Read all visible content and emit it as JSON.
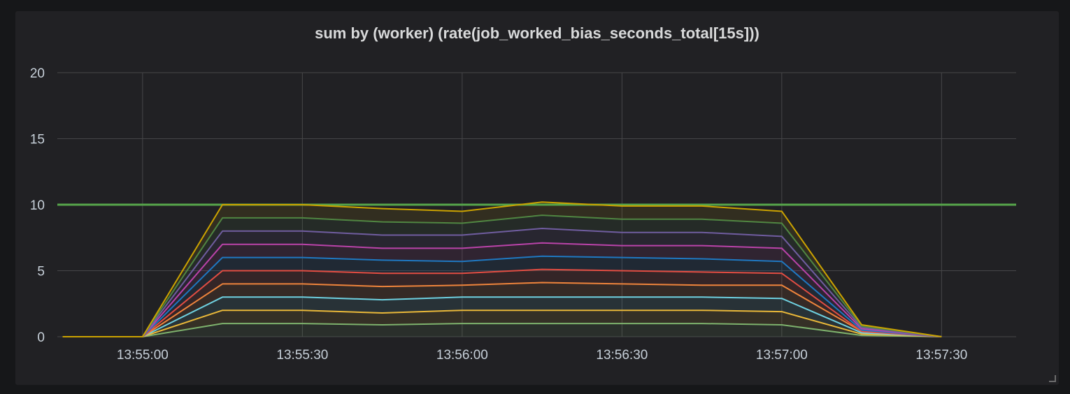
{
  "panel": {
    "title": "sum by (worker) (rate(job_worked_bias_seconds_total[15s]))"
  },
  "chart_data": {
    "type": "area",
    "title": "sum by (worker) (rate(job_worked_bias_seconds_total[15s]))",
    "xlabel": "",
    "ylabel": "",
    "stacked": true,
    "grid": true,
    "legend": "none",
    "ylim": [
      0,
      20
    ],
    "xlim": [
      "13:54:44",
      "13:57:44"
    ],
    "y_ticks": [
      "0",
      "5",
      "10",
      "15",
      "20"
    ],
    "x_ticks": [
      {
        "label": "13:55:00",
        "t": "13:55:00"
      },
      {
        "label": "13:55:30",
        "t": "13:55:30"
      },
      {
        "label": "13:56:00",
        "t": "13:56:00"
      },
      {
        "label": "13:56:30",
        "t": "13:56:30"
      },
      {
        "label": "13:57:00",
        "t": "13:57:00"
      },
      {
        "label": "13:57:30",
        "t": "13:57:30"
      }
    ],
    "x": [
      "13:54:45",
      "13:55:00",
      "13:55:15",
      "13:55:30",
      "13:55:45",
      "13:56:00",
      "13:56:15",
      "13:56:30",
      "13:56:45",
      "13:57:00",
      "13:57:15",
      "13:57:30"
    ],
    "threshold": {
      "value": 10,
      "color": "#56a64b"
    },
    "series": [
      {
        "color": "#7eb26d",
        "values": [
          0,
          0,
          1.0,
          1.0,
          0.9,
          1.0,
          1.0,
          1.0,
          1.0,
          0.9,
          0.1,
          0
        ]
      },
      {
        "color": "#eab839",
        "values": [
          0,
          0,
          2.0,
          2.0,
          1.8,
          2.0,
          2.0,
          2.0,
          2.0,
          1.9,
          0.2,
          0
        ]
      },
      {
        "color": "#6ed0e0",
        "values": [
          0,
          0,
          3.0,
          3.0,
          2.8,
          3.0,
          3.0,
          3.0,
          3.0,
          2.9,
          0.3,
          0
        ]
      },
      {
        "color": "#ef843c",
        "values": [
          0,
          0,
          4.0,
          4.0,
          3.8,
          3.9,
          4.1,
          4.0,
          3.9,
          3.9,
          0.4,
          0
        ]
      },
      {
        "color": "#e24d42",
        "values": [
          0,
          0,
          5.0,
          5.0,
          4.8,
          4.8,
          5.1,
          5.0,
          4.9,
          4.8,
          0.4,
          0
        ]
      },
      {
        "color": "#1f78c1",
        "values": [
          0,
          0,
          6.0,
          6.0,
          5.8,
          5.7,
          6.1,
          6.0,
          5.9,
          5.7,
          0.5,
          0
        ]
      },
      {
        "color": "#ba43a9",
        "values": [
          0,
          0,
          7.0,
          7.0,
          6.7,
          6.7,
          7.1,
          6.9,
          6.9,
          6.7,
          0.6,
          0
        ]
      },
      {
        "color": "#705da0",
        "values": [
          0,
          0,
          8.0,
          8.0,
          7.7,
          7.7,
          8.2,
          7.9,
          7.9,
          7.6,
          0.7,
          0
        ]
      },
      {
        "color": "#508642",
        "values": [
          0,
          0,
          9.0,
          9.0,
          8.7,
          8.6,
          9.2,
          8.9,
          8.9,
          8.6,
          0.8,
          0
        ]
      },
      {
        "color": "#cca300",
        "values": [
          0,
          0,
          10.0,
          10.0,
          9.7,
          9.5,
          10.2,
          9.9,
          9.9,
          9.5,
          0.9,
          0
        ]
      }
    ]
  }
}
